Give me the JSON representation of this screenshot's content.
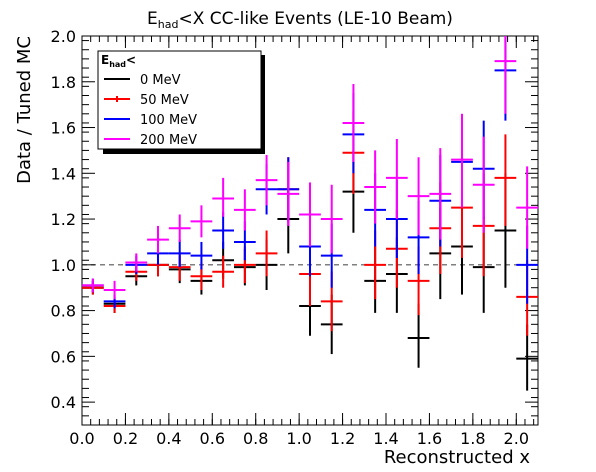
{
  "chart_data": {
    "type": "scatter",
    "title": "E",
    "title_subscript": "had",
    "title_rest": "<X CC-like Events (LE-10 Beam)",
    "xlabel": "Reconstructed x",
    "ylabel": "Data / Tuned MC",
    "xlim": [
      0.0,
      2.1
    ],
    "ylim": [
      0.3,
      2.0
    ],
    "x_ticks": [
      "0.0",
      "0.2",
      "0.4",
      "0.6",
      "0.8",
      "1.0",
      "1.2",
      "1.4",
      "1.6",
      "1.8",
      "2.0"
    ],
    "y_ticks": [
      "0.4",
      "0.6",
      "0.8",
      "1.0",
      "1.2",
      "1.4",
      "1.6",
      "1.8",
      "2.0"
    ],
    "reference_line": 1.0,
    "bin_width": 0.1,
    "legend": {
      "title": "E",
      "title_subscript": "had",
      "title_rest": "<",
      "placement": "top-left"
    },
    "series": [
      {
        "name": "0 MeV",
        "color": "#000000",
        "points": [
          {
            "x": 0.05,
            "y": 0.9,
            "lo": 0.87,
            "hi": 0.93
          },
          {
            "x": 0.15,
            "y": 0.83,
            "lo": 0.79,
            "hi": 0.86
          },
          {
            "x": 0.25,
            "y": 0.95,
            "lo": 0.91,
            "hi": 0.99
          },
          {
            "x": 0.35,
            "y": 1.0,
            "lo": 0.95,
            "hi": 1.05
          },
          {
            "x": 0.45,
            "y": 0.98,
            "lo": 0.92,
            "hi": 1.04
          },
          {
            "x": 0.55,
            "y": 0.93,
            "lo": 0.87,
            "hi": 0.99
          },
          {
            "x": 0.65,
            "y": 1.02,
            "lo": 0.94,
            "hi": 1.1
          },
          {
            "x": 0.75,
            "y": 0.99,
            "lo": 0.91,
            "hi": 1.07
          },
          {
            "x": 0.85,
            "y": 1.0,
            "lo": 0.89,
            "hi": 1.11
          },
          {
            "x": 0.95,
            "y": 1.2,
            "lo": 1.05,
            "hi": 1.33
          },
          {
            "x": 1.05,
            "y": 0.82,
            "lo": 0.69,
            "hi": 0.95
          },
          {
            "x": 1.15,
            "y": 0.74,
            "lo": 0.61,
            "hi": 0.87
          },
          {
            "x": 1.25,
            "y": 1.32,
            "lo": 1.14,
            "hi": 1.5
          },
          {
            "x": 1.35,
            "y": 0.93,
            "lo": 0.79,
            "hi": 1.08
          },
          {
            "x": 1.45,
            "y": 0.96,
            "lo": 0.79,
            "hi": 1.12
          },
          {
            "x": 1.55,
            "y": 0.68,
            "lo": 0.55,
            "hi": 0.83
          },
          {
            "x": 1.65,
            "y": 1.05,
            "lo": 0.85,
            "hi": 1.25
          },
          {
            "x": 1.75,
            "y": 1.08,
            "lo": 0.87,
            "hi": 1.3
          },
          {
            "x": 1.85,
            "y": 0.99,
            "lo": 0.79,
            "hi": 1.21
          },
          {
            "x": 1.95,
            "y": 1.15,
            "lo": 0.9,
            "hi": 1.4
          },
          {
            "x": 2.05,
            "y": 0.59,
            "lo": 0.45,
            "hi": 0.74
          }
        ]
      },
      {
        "name": "50 MeV",
        "color": "#ff0000",
        "points": [
          {
            "x": 0.05,
            "y": 0.9,
            "lo": 0.87,
            "hi": 0.93
          },
          {
            "x": 0.15,
            "y": 0.82,
            "lo": 0.79,
            "hi": 0.85
          },
          {
            "x": 0.25,
            "y": 0.97,
            "lo": 0.93,
            "hi": 1.01
          },
          {
            "x": 0.35,
            "y": 1.0,
            "lo": 0.95,
            "hi": 1.05
          },
          {
            "x": 0.45,
            "y": 0.99,
            "lo": 0.93,
            "hi": 1.05
          },
          {
            "x": 0.55,
            "y": 0.95,
            "lo": 0.89,
            "hi": 1.01
          },
          {
            "x": 0.65,
            "y": 0.97,
            "lo": 0.9,
            "hi": 1.04
          },
          {
            "x": 0.75,
            "y": 1.0,
            "lo": 0.92,
            "hi": 1.08
          },
          {
            "x": 0.85,
            "y": 1.05,
            "lo": 0.95,
            "hi": 1.15
          },
          {
            "x": 0.95,
            "y": 1.33,
            "lo": 1.19,
            "hi": 1.47
          },
          {
            "x": 1.05,
            "y": 0.96,
            "lo": 0.82,
            "hi": 1.1
          },
          {
            "x": 1.15,
            "y": 0.84,
            "lo": 0.71,
            "hi": 0.97
          },
          {
            "x": 1.25,
            "y": 1.49,
            "lo": 1.31,
            "hi": 1.67
          },
          {
            "x": 1.35,
            "y": 1.0,
            "lo": 0.85,
            "hi": 1.15
          },
          {
            "x": 1.45,
            "y": 1.07,
            "lo": 0.9,
            "hi": 1.24
          },
          {
            "x": 1.55,
            "y": 0.93,
            "lo": 0.78,
            "hi": 1.08
          },
          {
            "x": 1.65,
            "y": 1.16,
            "lo": 0.96,
            "hi": 1.36
          },
          {
            "x": 1.75,
            "y": 1.25,
            "lo": 1.03,
            "hi": 1.47
          },
          {
            "x": 1.85,
            "y": 1.17,
            "lo": 0.95,
            "hi": 1.4
          },
          {
            "x": 1.95,
            "y": 1.38,
            "lo": 1.17,
            "hi": 1.57
          },
          {
            "x": 2.05,
            "y": 0.86,
            "lo": 0.69,
            "hi": 1.02
          }
        ]
      },
      {
        "name": "100 MeV",
        "color": "#0000ff",
        "points": [
          {
            "x": 0.05,
            "y": 0.91,
            "lo": 0.88,
            "hi": 0.94
          },
          {
            "x": 0.15,
            "y": 0.84,
            "lo": 0.81,
            "hi": 0.87
          },
          {
            "x": 0.25,
            "y": 1.0,
            "lo": 0.96,
            "hi": 1.04
          },
          {
            "x": 0.35,
            "y": 1.05,
            "lo": 1.0,
            "hi": 1.1
          },
          {
            "x": 0.45,
            "y": 1.05,
            "lo": 0.99,
            "hi": 1.11
          },
          {
            "x": 0.55,
            "y": 1.04,
            "lo": 0.98,
            "hi": 1.1
          },
          {
            "x": 0.65,
            "y": 1.15,
            "lo": 1.07,
            "hi": 1.23
          },
          {
            "x": 0.75,
            "y": 1.1,
            "lo": 1.02,
            "hi": 1.19
          },
          {
            "x": 0.85,
            "y": 1.33,
            "lo": 1.22,
            "hi": 1.44
          },
          {
            "x": 0.95,
            "y": 1.33,
            "lo": 1.19,
            "hi": 1.47
          },
          {
            "x": 1.05,
            "y": 1.08,
            "lo": 0.95,
            "hi": 1.22
          },
          {
            "x": 1.15,
            "y": 1.04,
            "lo": 0.9,
            "hi": 1.18
          },
          {
            "x": 1.25,
            "y": 1.57,
            "lo": 1.4,
            "hi": 1.75
          },
          {
            "x": 1.35,
            "y": 1.24,
            "lo": 1.08,
            "hi": 1.4
          },
          {
            "x": 1.45,
            "y": 1.2,
            "lo": 1.03,
            "hi": 1.37
          },
          {
            "x": 1.55,
            "y": 1.12,
            "lo": 0.96,
            "hi": 1.28
          },
          {
            "x": 1.65,
            "y": 1.28,
            "lo": 1.08,
            "hi": 1.48
          },
          {
            "x": 1.75,
            "y": 1.45,
            "lo": 1.25,
            "hi": 1.65
          },
          {
            "x": 1.85,
            "y": 1.42,
            "lo": 1.2,
            "hi": 1.63
          },
          {
            "x": 1.95,
            "y": 1.85,
            "lo": 1.63,
            "hi": 2.0
          },
          {
            "x": 2.05,
            "y": 1.0,
            "lo": 0.83,
            "hi": 1.17
          }
        ]
      },
      {
        "name": "200 MeV",
        "color": "#ff00ff",
        "points": [
          {
            "x": 0.05,
            "y": 0.91,
            "lo": 0.88,
            "hi": 0.94
          },
          {
            "x": 0.15,
            "y": 0.89,
            "lo": 0.85,
            "hi": 0.93
          },
          {
            "x": 0.25,
            "y": 1.01,
            "lo": 0.97,
            "hi": 1.05
          },
          {
            "x": 0.35,
            "y": 1.11,
            "lo": 1.05,
            "hi": 1.17
          },
          {
            "x": 0.45,
            "y": 1.16,
            "lo": 1.1,
            "hi": 1.22
          },
          {
            "x": 0.55,
            "y": 1.19,
            "lo": 1.12,
            "hi": 1.26
          },
          {
            "x": 0.65,
            "y": 1.29,
            "lo": 1.21,
            "hi": 1.38
          },
          {
            "x": 0.75,
            "y": 1.24,
            "lo": 1.15,
            "hi": 1.33
          },
          {
            "x": 0.85,
            "y": 1.37,
            "lo": 1.26,
            "hi": 1.48
          },
          {
            "x": 0.95,
            "y": 1.31,
            "lo": 1.17,
            "hi": 1.45
          },
          {
            "x": 1.05,
            "y": 1.22,
            "lo": 1.08,
            "hi": 1.36
          },
          {
            "x": 1.15,
            "y": 1.2,
            "lo": 1.05,
            "hi": 1.35
          },
          {
            "x": 1.25,
            "y": 1.62,
            "lo": 1.45,
            "hi": 1.79
          },
          {
            "x": 1.35,
            "y": 1.34,
            "lo": 1.18,
            "hi": 1.5
          },
          {
            "x": 1.45,
            "y": 1.38,
            "lo": 1.2,
            "hi": 1.55
          },
          {
            "x": 1.55,
            "y": 1.3,
            "lo": 1.13,
            "hi": 1.47
          },
          {
            "x": 1.65,
            "y": 1.31,
            "lo": 1.11,
            "hi": 1.51
          },
          {
            "x": 1.75,
            "y": 1.46,
            "lo": 1.25,
            "hi": 1.66
          },
          {
            "x": 1.85,
            "y": 1.35,
            "lo": 1.14,
            "hi": 1.56
          },
          {
            "x": 1.95,
            "y": 1.89,
            "lo": 1.66,
            "hi": 2.0
          },
          {
            "x": 2.05,
            "y": 1.25,
            "lo": 1.07,
            "hi": 1.43
          }
        ]
      }
    ]
  }
}
